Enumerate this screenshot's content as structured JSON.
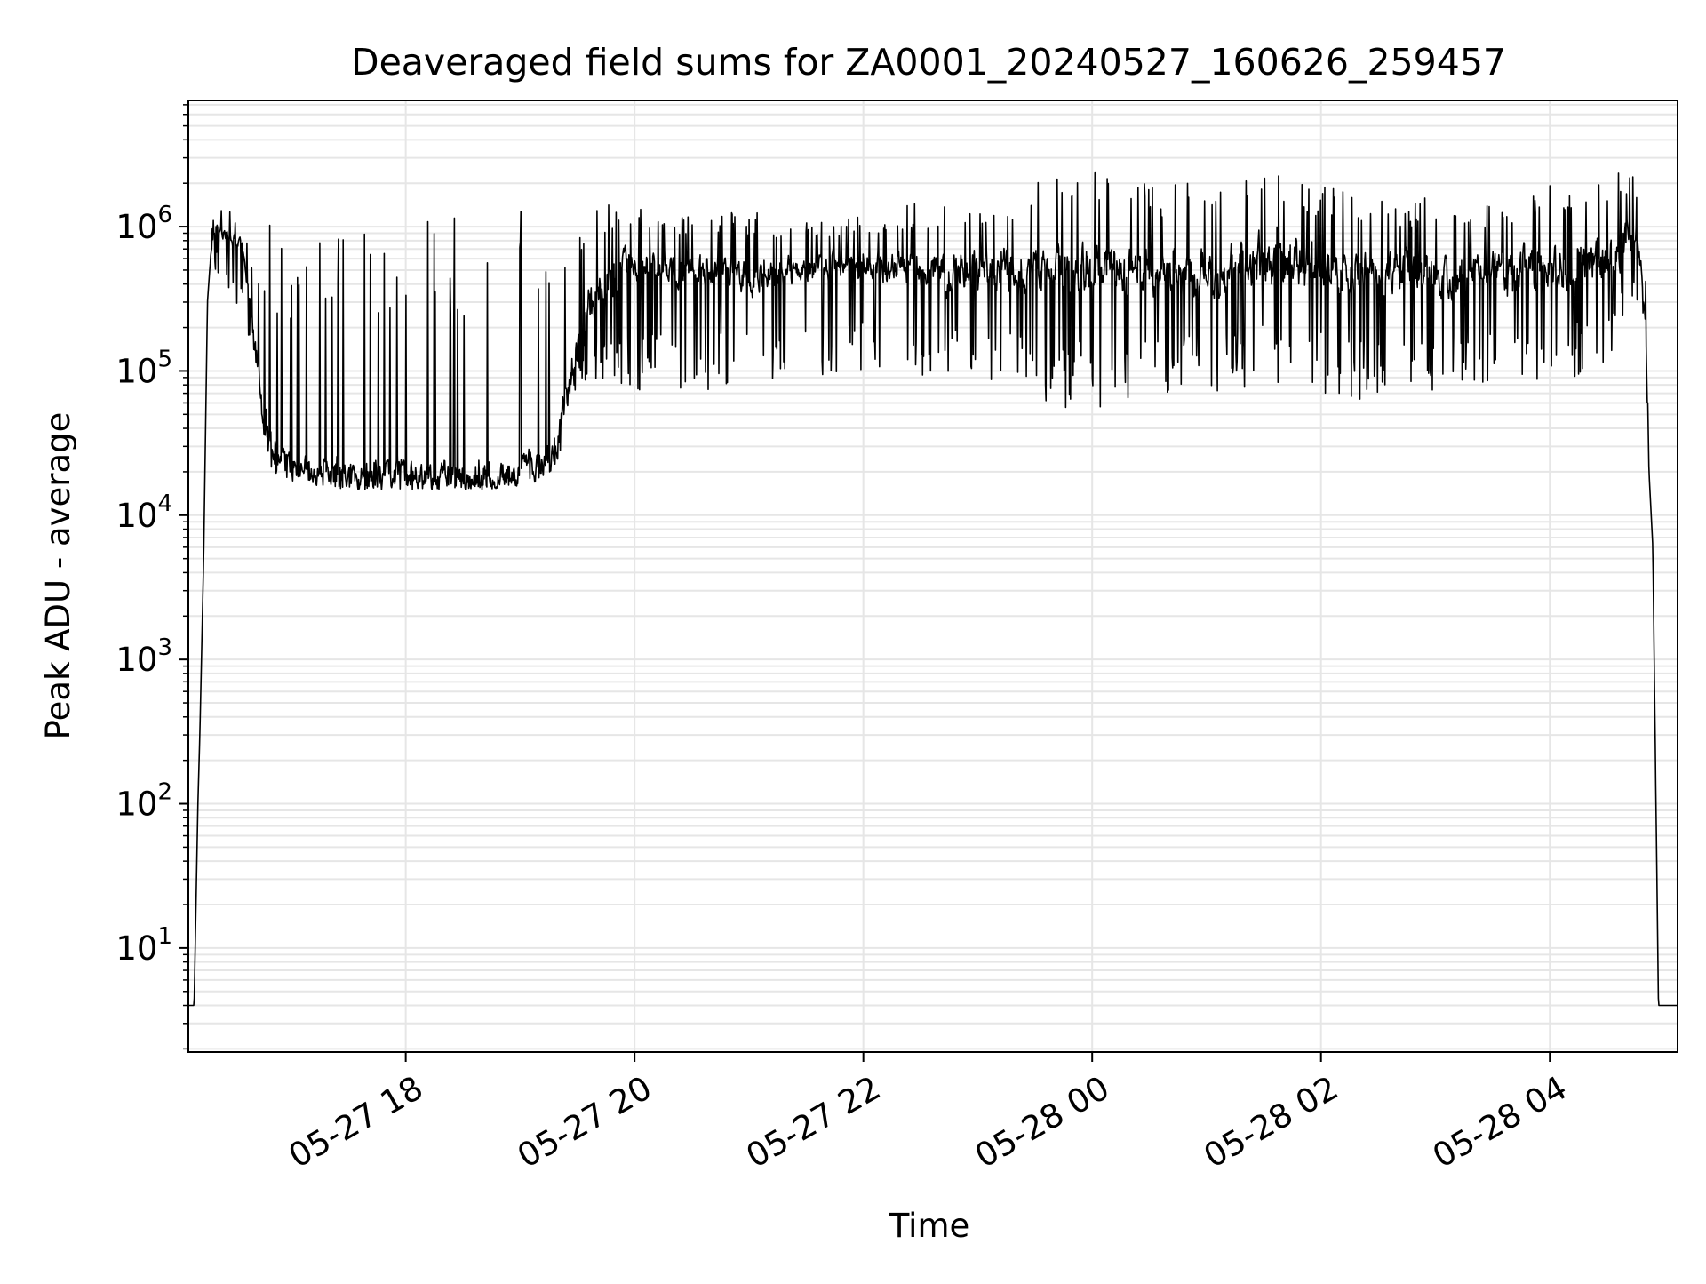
{
  "chart_data": {
    "type": "line",
    "title": "Deaveraged field sums for ZA0001_20240527_160626_259457",
    "xlabel": "Time",
    "ylabel": "Peak ADU - average",
    "xscale": "time",
    "yscale": "log",
    "xlim": [
      "2024-05-27 16:06",
      "2024-05-28 05:07"
    ],
    "ylim": [
      1.9,
      7500000
    ],
    "x_ticks": [
      {
        "value": "2024-05-27 18:00",
        "label": "05-27 18"
      },
      {
        "value": "2024-05-27 20:00",
        "label": "05-27 20"
      },
      {
        "value": "2024-05-27 22:00",
        "label": "05-27 22"
      },
      {
        "value": "2024-05-28 00:00",
        "label": "05-28 00"
      },
      {
        "value": "2024-05-28 02:00",
        "label": "05-28 02"
      },
      {
        "value": "2024-05-28 04:00",
        "label": "05-28 04"
      }
    ],
    "y_ticks": [
      {
        "value": 10,
        "base": "10",
        "exp": "1"
      },
      {
        "value": 100,
        "base": "10",
        "exp": "2"
      },
      {
        "value": 1000,
        "base": "10",
        "exp": "3"
      },
      {
        "value": 10000,
        "base": "10",
        "exp": "4"
      },
      {
        "value": 100000,
        "base": "10",
        "exp": "5"
      },
      {
        "value": 1000000,
        "base": "10",
        "exp": "6"
      }
    ],
    "grid": true,
    "line_color": "#000000",
    "grid_color": "#e6e6e6",
    "series": [
      {
        "x": [
          "2024-05-27 16:06",
          "2024-05-27 16:08",
          "2024-05-27 16:09",
          "2024-05-27 16:10",
          "2024-05-27 16:11",
          "2024-05-27 16:12",
          "2024-05-27 16:14",
          "2024-05-27 16:16",
          "2024-05-27 16:18",
          "2024-05-27 16:20",
          "2024-05-27 16:25",
          "2024-05-27 16:30",
          "2024-05-27 16:35",
          "2024-05-27 16:40",
          "2024-05-27 16:45",
          "2024-05-27 16:50",
          "2024-05-27 16:55",
          "2024-05-27 17:00",
          "2024-05-27 17:05",
          "2024-05-27 17:10",
          "2024-05-27 17:15",
          "2024-05-27 17:30",
          "2024-05-27 17:45",
          "2024-05-27 18:00",
          "2024-05-27 18:20",
          "2024-05-27 18:40",
          "2024-05-27 19:00",
          "2024-05-27 19:15",
          "2024-05-27 19:20",
          "2024-05-27 19:25",
          "2024-05-27 19:30",
          "2024-05-27 19:40",
          "2024-05-27 20:00",
          "2024-05-27 20:30",
          "2024-05-27 21:00",
          "2024-05-27 21:30",
          "2024-05-27 22:00",
          "2024-05-27 22:30",
          "2024-05-27 23:00",
          "2024-05-27 23:30",
          "2024-05-28 00:00",
          "2024-05-28 00:30",
          "2024-05-28 01:00",
          "2024-05-28 01:30",
          "2024-05-28 02:00",
          "2024-05-28 02:30",
          "2024-05-28 03:00",
          "2024-05-28 03:30",
          "2024-05-28 04:00",
          "2024-05-28 04:30",
          "2024-05-28 04:45",
          "2024-05-28 04:48",
          "2024-05-28 04:50",
          "2024-05-28 04:52",
          "2024-05-28 04:54",
          "2024-05-28 04:55",
          "2024-05-28 04:56",
          "2024-05-28 04:57",
          "2024-05-28 05:07"
        ],
        "y": [
          4,
          4,
          4,
          20,
          100,
          300,
          5000,
          300000,
          700000,
          1000000,
          900000,
          800000,
          700000,
          200000,
          50000,
          30000,
          25000,
          22000,
          21000,
          20000,
          20000,
          19000,
          19000,
          19000,
          19000,
          19000,
          20000,
          25000,
          40000,
          70000,
          150000,
          350000,
          550000,
          500000,
          450000,
          500000,
          550000,
          500000,
          480000,
          500000,
          550000,
          480000,
          450000,
          550000,
          500000,
          480000,
          450000,
          480000,
          520000,
          550000,
          900000,
          600000,
          300000,
          20000,
          6000,
          500,
          50,
          4,
          4
        ],
        "min": [
          4,
          4,
          4,
          20,
          100,
          300,
          5000,
          300000,
          400000,
          500000,
          400000,
          300000,
          250000,
          100000,
          22000,
          20000,
          18000,
          17000,
          17000,
          16000,
          16000,
          15000,
          15000,
          15000,
          15000,
          15000,
          16000,
          18000,
          25000,
          40000,
          60000,
          80000,
          70000,
          70000,
          80000,
          90000,
          100000,
          90000,
          80000,
          60000,
          50000,
          70000,
          70000,
          80000,
          70000,
          60000,
          70000,
          80000,
          80000,
          100000,
          300000,
          250000,
          200000,
          20000,
          6000,
          500,
          50,
          4,
          4
        ],
        "max": [
          4,
          4,
          4,
          20,
          100,
          300,
          5000,
          300000,
          1000000,
          1200000,
          1400000,
          1200000,
          1000000,
          700000,
          1100000,
          1100000,
          1100000,
          1100000,
          1100000,
          1100000,
          1100000,
          1100000,
          1100000,
          1100000,
          1200000,
          1300000,
          1500000,
          1600000,
          1600000,
          1600000,
          1600000,
          1500000,
          1400000,
          1200000,
          1300000,
          1100000,
          1200000,
          1500000,
          1600000,
          2000000,
          2500000,
          2000000,
          2000000,
          3000000,
          2000000,
          1500000,
          1600000,
          1500000,
          2000000,
          2500000,
          2500000,
          1500000,
          700000,
          20000,
          6000,
          500,
          50,
          4,
          4
        ]
      }
    ]
  }
}
